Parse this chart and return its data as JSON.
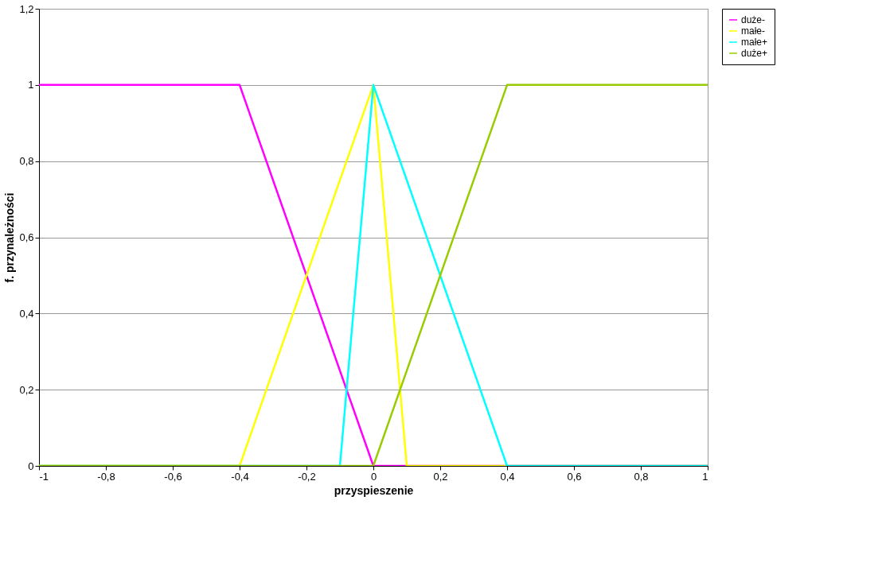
{
  "chart_data": {
    "type": "line",
    "xlabel": "przyspieszenie",
    "ylabel": "f. przynależności",
    "series": [
      {
        "name": "duże-",
        "color": "#ff00ff",
        "x": [
          -1,
          -0.4,
          0,
          1
        ],
        "values": [
          1,
          1,
          0,
          0
        ]
      },
      {
        "name": "małe-",
        "color": "#ffff00",
        "x": [
          -1,
          -0.4,
          0,
          0.1,
          1
        ],
        "values": [
          0,
          0,
          1,
          0,
          0
        ]
      },
      {
        "name": "małe+",
        "color": "#00ffff",
        "x": [
          -1,
          -0.1,
          0,
          0.4,
          1
        ],
        "values": [
          0,
          0,
          1,
          0,
          0
        ]
      },
      {
        "name": "duże+",
        "color": "#99cc00",
        "x": [
          -1,
          0,
          0.4,
          1
        ],
        "values": [
          0,
          0,
          1,
          1
        ]
      }
    ],
    "xlim": [
      -1,
      1
    ],
    "xticks": [
      -1,
      {
        "value": -0.8,
        "label": "-0,8"
      },
      {
        "value": -0.6,
        "label": "-0,6"
      },
      {
        "value": -0.4,
        "label": "-0,4"
      },
      {
        "value": -0.2,
        "label": "-0,2"
      },
      0,
      {
        "value": 0.2,
        "label": "0,2"
      },
      {
        "value": 0.4,
        "label": "0,4"
      },
      {
        "value": 0.6,
        "label": "0,6"
      },
      {
        "value": 0.8,
        "label": "0,8"
      },
      1
    ],
    "ylim": [
      0,
      1.2
    ],
    "yticks": [
      0,
      {
        "value": 0.2,
        "label": "0,2"
      },
      {
        "value": 0.4,
        "label": "0,4"
      },
      {
        "value": 0.6,
        "label": "0,6"
      },
      {
        "value": 0.8,
        "label": "0,8"
      },
      1,
      {
        "value": 1.2,
        "label": "1,2"
      }
    ],
    "grid": "y",
    "legend": "right",
    "marker": "none",
    "line_style": "solid"
  }
}
